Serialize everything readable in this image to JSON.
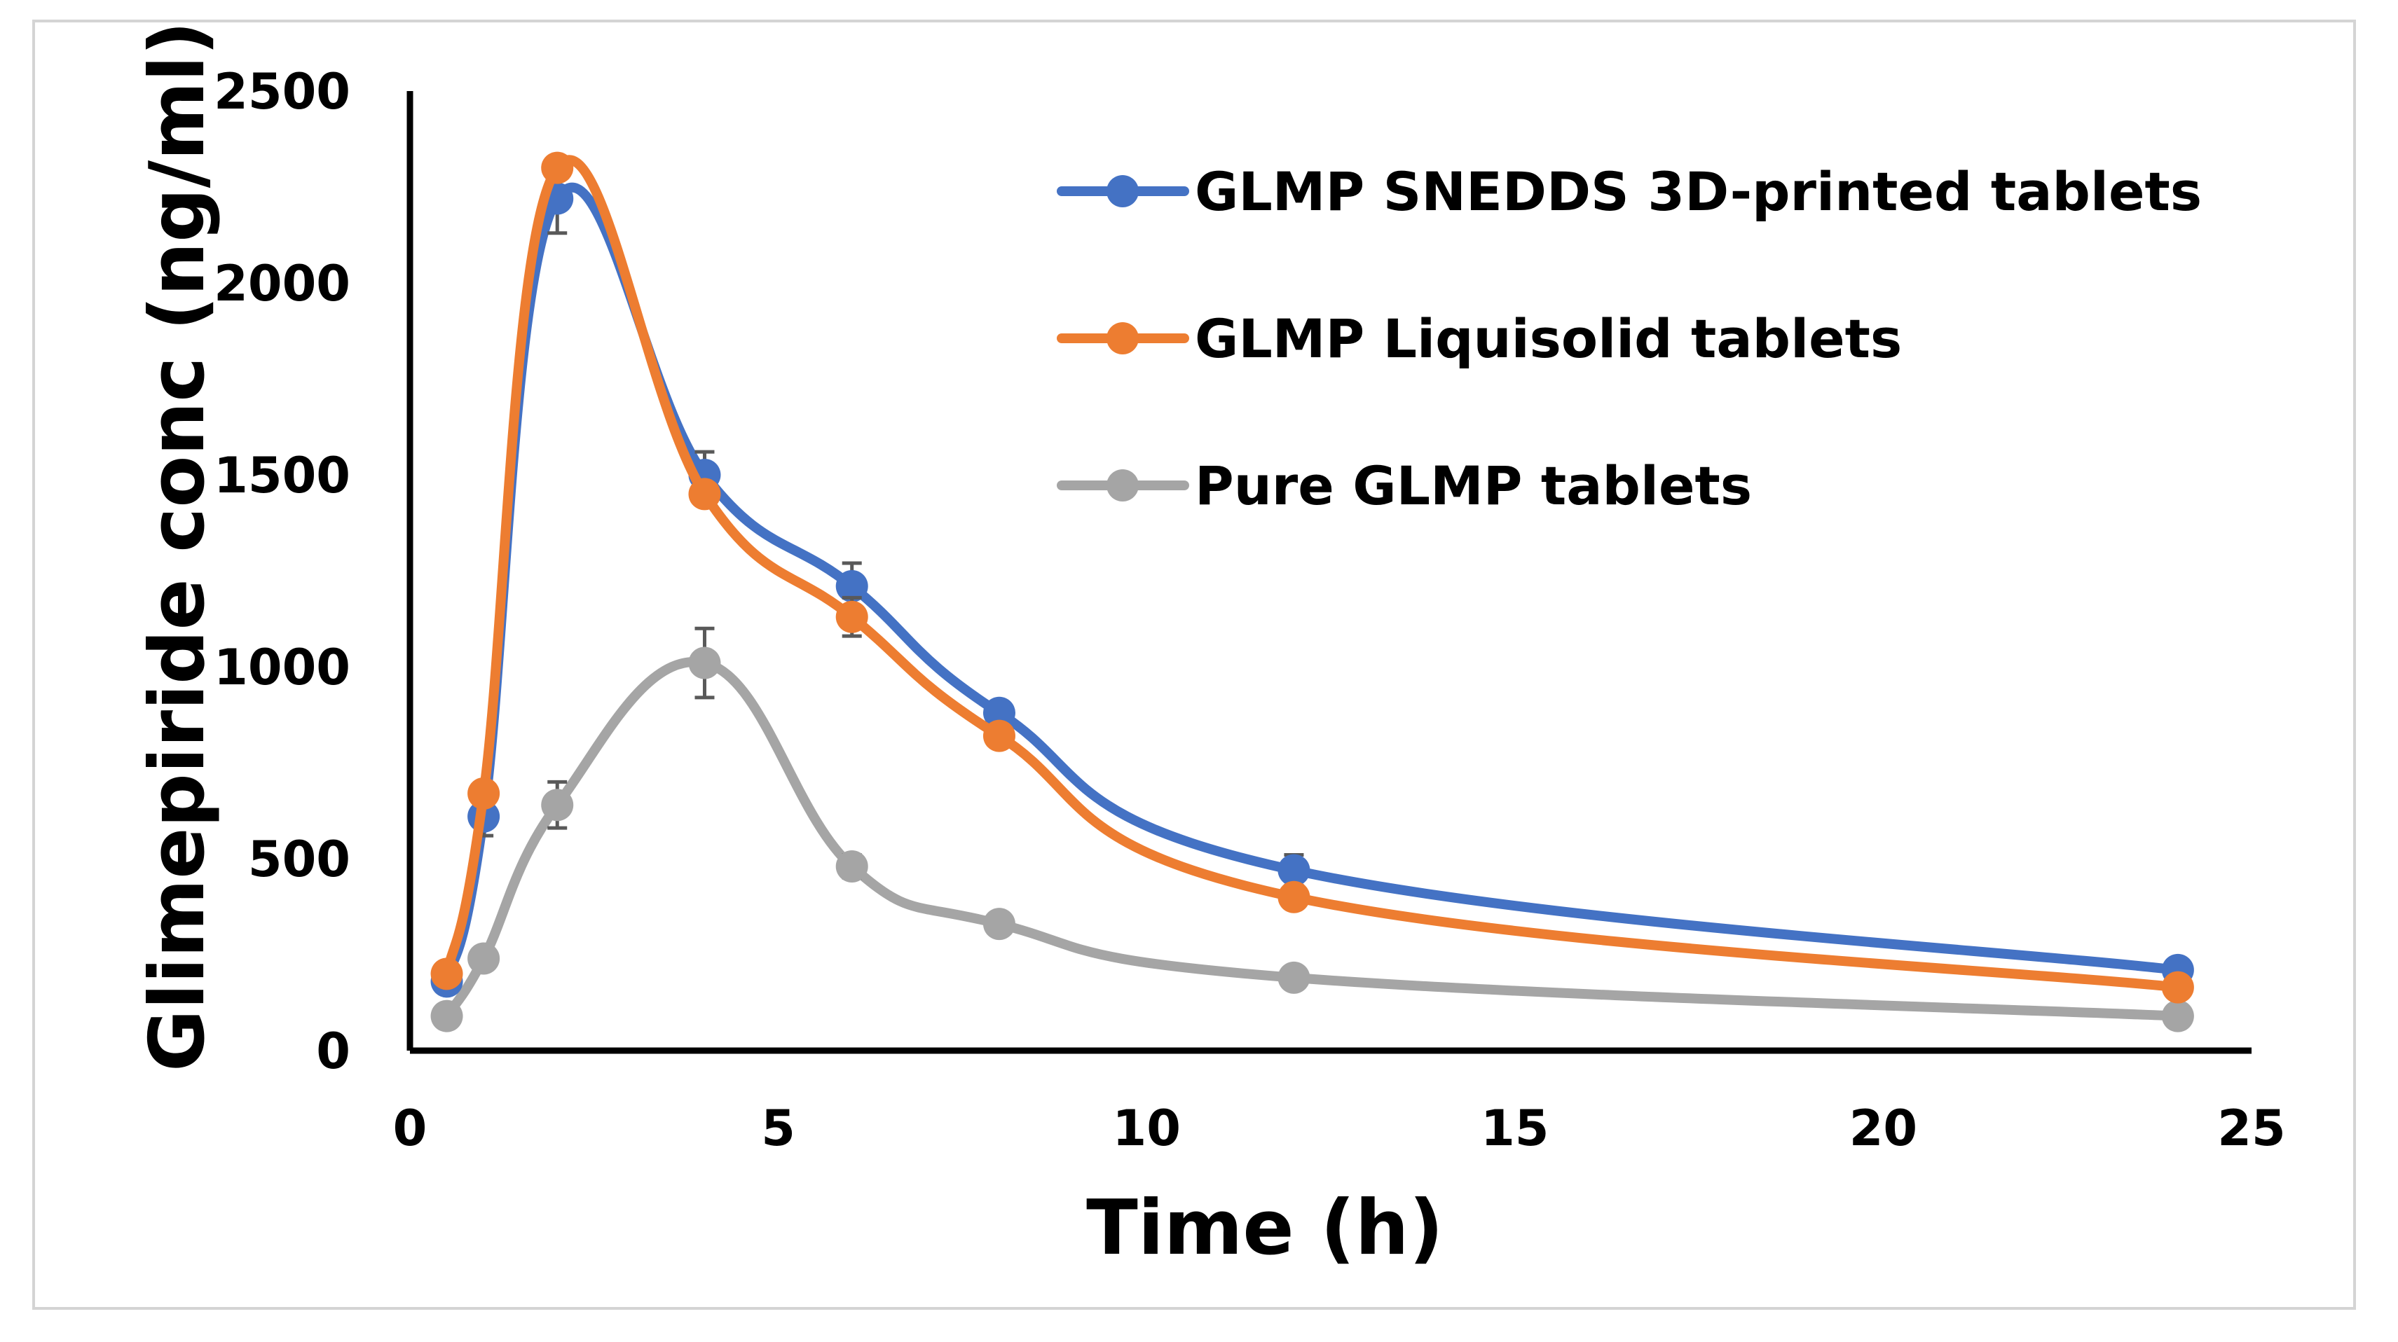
{
  "chart_data": {
    "type": "line",
    "title": "",
    "xlabel": "Time (h)",
    "ylabel": "Glimepiride conc (ng/ml)",
    "xlim": [
      0,
      25
    ],
    "ylim": [
      0,
      2500
    ],
    "xticks": [
      0,
      5,
      10,
      15,
      20,
      25
    ],
    "yticks": [
      0,
      500,
      1000,
      1500,
      2000,
      2500
    ],
    "grid": false,
    "legend_position": "top-right",
    "x": [
      0.5,
      1,
      2,
      4,
      6,
      8,
      12,
      24
    ],
    "series": [
      {
        "name": "GLMP SNEDDS 3D-printed tablets",
        "color": "#4472C4",
        "values": [
          180,
          610,
          2220,
          1500,
          1210,
          880,
          470,
          210
        ],
        "errors": [
          0,
          50,
          90,
          60,
          60,
          0,
          40,
          0
        ]
      },
      {
        "name": "GLMP Liquisolid tablets",
        "color": "#ED7D31",
        "values": [
          200,
          670,
          2300,
          1450,
          1130,
          820,
          400,
          165
        ],
        "errors": [
          0,
          0,
          0,
          0,
          50,
          0,
          0,
          0
        ]
      },
      {
        "name": "Pure GLMP tablets",
        "color": "#A5A5A5",
        "values": [
          90,
          240,
          640,
          1010,
          480,
          330,
          190,
          90
        ],
        "errors": [
          0,
          0,
          60,
          90,
          30,
          0,
          0,
          0
        ]
      }
    ]
  }
}
